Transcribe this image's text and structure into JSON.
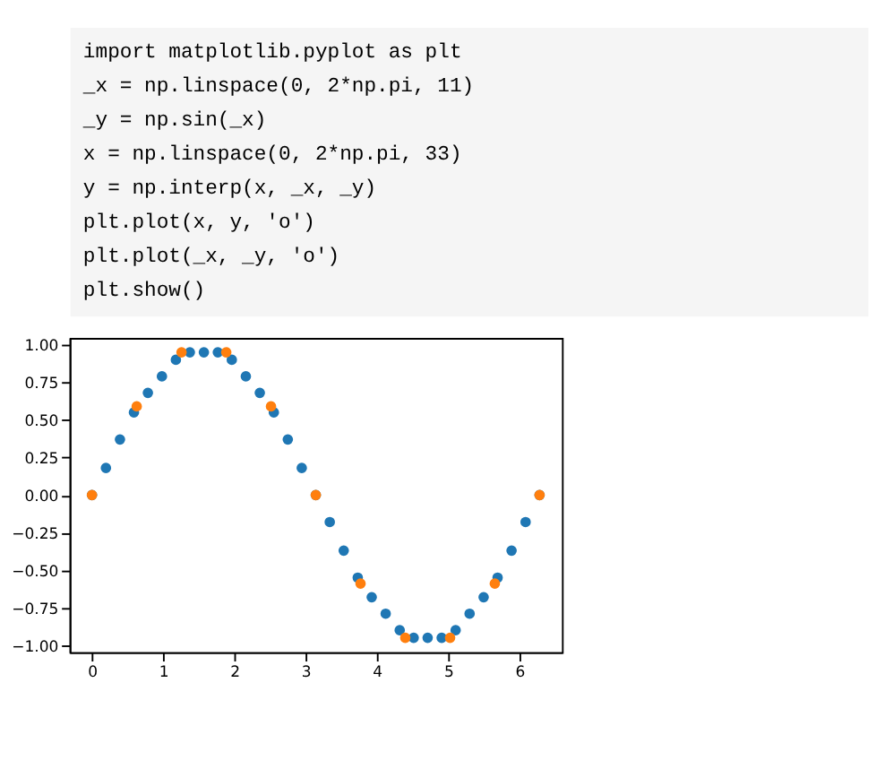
{
  "chart_data": {
    "type": "scatter",
    "marker": "circle",
    "annotations": [
      "import  matplotlib.pyplot  as  plt",
      "_x  =  np.linspace(0,  2*np.pi,  11)",
      "_y  =  np.sin(_x)",
      "x  =  np.linspace(0,  2*np.pi,  33)",
      "y  =  np.interp(x,  _x,  _y)",
      "plt.plot(x,  y,  'o')",
      "plt.plot(_x,  _y,  'o')",
      "plt.show()"
    ],
    "xlim": [
      -0.314,
      6.597
    ],
    "ylim": [
      -1.046,
      1.046
    ],
    "xticks": [
      0,
      1,
      2,
      3,
      4,
      5,
      6
    ],
    "yticks": [
      {
        "value": -1,
        "label": "−1.00"
      },
      {
        "value": -0.75,
        "label": "−0.75"
      },
      {
        "value": -0.5,
        "label": "−0.50"
      },
      {
        "value": -0.25,
        "label": "−0.25"
      },
      {
        "value": 0,
        "label": "0.00"
      },
      {
        "value": 0.25,
        "label": "0.25"
      },
      {
        "value": 0.5,
        "label": "0.50"
      },
      {
        "value": 0.75,
        "label": "0.75"
      },
      {
        "value": 1,
        "label": "1.00"
      }
    ],
    "series": [
      {
        "color": "#1f77b4",
        "x": [
          0,
          0.196,
          0.393,
          0.589,
          0.785,
          0.982,
          1.178,
          1.374,
          1.571,
          1.767,
          1.963,
          2.16,
          2.356,
          2.553,
          2.749,
          2.945,
          3.142,
          3.338,
          3.534,
          3.731,
          3.927,
          4.123,
          4.32,
          4.516,
          4.712,
          4.909,
          5.105,
          5.301,
          5.498,
          5.694,
          5.89,
          6.087,
          6.283
        ],
        "values": [
          0,
          0.18,
          0.37,
          0.55,
          0.68,
          0.79,
          0.9,
          0.95,
          0.95,
          0.95,
          0.9,
          0.79,
          0.68,
          0.55,
          0.37,
          0.18,
          0,
          -0.18,
          -0.37,
          -0.55,
          -0.68,
          -0.79,
          -0.9,
          -0.95,
          -0.95,
          -0.95,
          -0.9,
          -0.79,
          -0.68,
          -0.55,
          -0.37,
          -0.18,
          0
        ]
      },
      {
        "color": "#ff7f0e",
        "x": [
          0,
          0.628,
          1.257,
          1.885,
          2.513,
          3.142,
          3.77,
          4.398,
          5.027,
          5.655,
          6.283
        ],
        "values": [
          0,
          0.59,
          0.95,
          0.95,
          0.59,
          0,
          -0.59,
          -0.95,
          -0.95,
          -0.59,
          0
        ]
      }
    ]
  }
}
